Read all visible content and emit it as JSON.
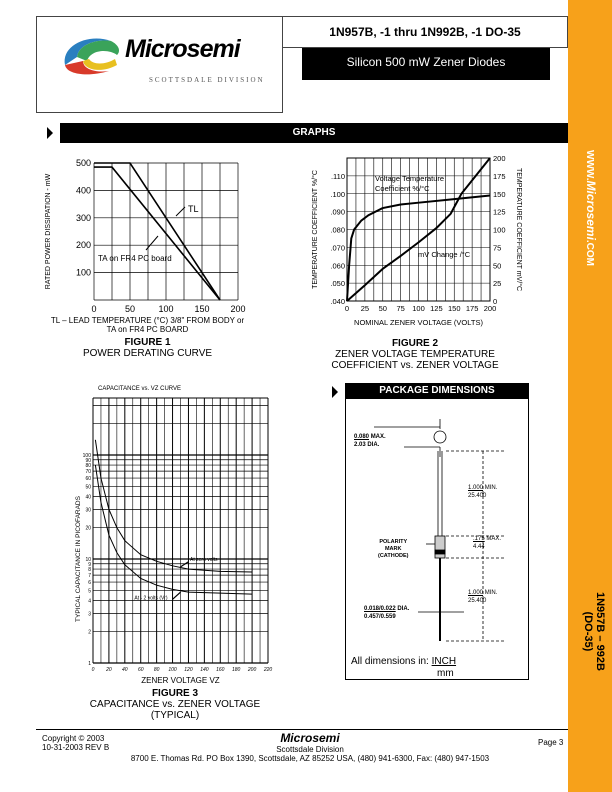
{
  "header": {
    "logo_text": "Microsemi",
    "logo_division": "SCOTTSDALE DIVISION",
    "title": "1N957B, -1 thru 1N992B, -1  DO-35",
    "subtitle": "Silicon 500 mW Zener Diodes"
  },
  "sidebar": {
    "website_prefix": "WWW.",
    "website_brand": "Microsemi",
    "website_suffix": ".COM",
    "part_line1": "1N957B – 992B",
    "part_line2": "(DO-35)",
    "color": "#f7a11a"
  },
  "sections": {
    "graphs": "GRAPHS",
    "package": "PACKAGE DIMENSIONS"
  },
  "figure1": {
    "fig_label": "FIGURE 1",
    "caption": "POWER DERATING CURVE",
    "xlabel_line1": "TL – LEAD TEMPERATURE (°C) 3/8\" FROM BODY or",
    "xlabel_line2": "TA on FR4 PC BOARD",
    "ylabel": "RATED POWER DISSIPATION - mW",
    "annot_tl": "TL",
    "annot_ta": "TA on FR4 PC board"
  },
  "figure2": {
    "fig_label": "FIGURE 2",
    "caption_line1": "ZENER VOLTAGE TEMPERATURE",
    "caption_line2": "COEFFICIENT vs. ZENER VOLTAGE",
    "xlabel": "NOMINAL ZENER VOLTAGE (VOLTS)",
    "ylabel_left": "TEMPERATURE COEFFICIENT %/°C",
    "ylabel_right": "TEMPERATURE COEFFICIENT mV/°C",
    "annot_pct_line1": "Voltage Temperature",
    "annot_pct_line2": "Coefficient %/°C",
    "annot_mv": "mV Change /°C"
  },
  "figure3": {
    "title": "CAPACITANCE vs. VZ CURVE",
    "fig_label": "FIGURE 3",
    "caption_line1": "CAPACITANCE vs. ZENER VOLTAGE",
    "caption_line2": "(TYPICAL)",
    "xlabel": "ZENER VOLTAGE VZ",
    "ylabel": "TYPICAL CAPACITANCE IN PICOFARADS",
    "annot_zero": "At zero volts",
    "annot_minus2": "At - 2 volts (Vr)"
  },
  "package": {
    "lead_dia": {
      "inch": "0.080",
      "mm": "2.03",
      "note1": "MAX.",
      "note2": "DIA."
    },
    "lead_len_top": {
      "inch": "1.000",
      "mm": "25.400",
      "note": "MIN."
    },
    "body_len": {
      "inch": ".175",
      "mm": "4.44",
      "note": "MAX."
    },
    "polarity": [
      "POLARITY",
      "MARK",
      "(CATHODE)"
    ],
    "lead_len_bottom": {
      "inch": "1.000",
      "mm": "25.400",
      "note": "MIN."
    },
    "wire_dia": {
      "inch": "0.018/0.022",
      "mm": "0.457/0.559",
      "note": "DIA."
    },
    "units_label": "All dimensions in:",
    "units_inch": "INCH",
    "units_mm": "mm"
  },
  "footer": {
    "copyright": "Copyright © 2003",
    "rev": "10-31-2003  REV B",
    "brand": "Microsemi",
    "division": "Scottsdale Division",
    "address": "8700 E. Thomas Rd. PO Box 1390, Scottsdale, AZ 85252 USA, (480) 941-6300, Fax: (480) 947-1503",
    "page": "Page 3"
  },
  "chart_data": [
    {
      "type": "line",
      "title": "",
      "xlabel": "TL – LEAD TEMPERATURE (°C) 3/8\" FROM BODY or TA on FR4 PC BOARD",
      "ylabel": "RATED POWER DISSIPATION - mW",
      "xlim": [
        0,
        200
      ],
      "ylim": [
        0,
        500
      ],
      "xticks": [
        0,
        50,
        100,
        150,
        200
      ],
      "yticks": [
        100,
        200,
        300,
        400,
        500
      ],
      "grid": true,
      "series": [
        {
          "name": "TL",
          "points": [
            [
              0,
              500
            ],
            [
              50,
              500
            ],
            [
              175,
              0
            ]
          ]
        },
        {
          "name": "TA on FR4 PC board",
          "points": [
            [
              0,
              485
            ],
            [
              25,
              485
            ],
            [
              175,
              0
            ]
          ]
        }
      ]
    },
    {
      "type": "line",
      "xlabel": "NOMINAL ZENER VOLTAGE (VOLTS)",
      "xlim": [
        0,
        200
      ],
      "ylim_left": [
        0.04,
        0.12
      ],
      "ylim_right": [
        0,
        200
      ],
      "xticks": [
        0,
        25,
        50,
        75,
        100,
        125,
        150,
        175,
        200
      ],
      "yticks_left": [
        ".040",
        ".050",
        ".060",
        ".070",
        ".080",
        ".090",
        ".100",
        ".110"
      ],
      "yticks_right": [
        0,
        25,
        50,
        75,
        100,
        125,
        150,
        175,
        200
      ],
      "grid": true,
      "series": [
        {
          "name": "Voltage Temperature Coefficient %/°C",
          "axis": "left",
          "points": [
            [
              0,
              0.04
            ],
            [
              3,
              0.06
            ],
            [
              6,
              0.075
            ],
            [
              10,
              0.08
            ],
            [
              20,
              0.085
            ],
            [
              30,
              0.088
            ],
            [
              50,
              0.092
            ],
            [
              75,
              0.094
            ],
            [
              100,
              0.095
            ],
            [
              150,
              0.097
            ],
            [
              200,
              0.099
            ]
          ]
        },
        {
          "name": "mV Change /°C",
          "axis": "right",
          "points": [
            [
              0,
              0
            ],
            [
              25,
              22
            ],
            [
              50,
              45
            ],
            [
              75,
              63
            ],
            [
              100,
              82
            ],
            [
              125,
              102
            ],
            [
              145,
              122
            ],
            [
              160,
              150
            ],
            [
              200,
              200
            ]
          ]
        }
      ]
    },
    {
      "type": "line",
      "title": "CAPACITANCE vs. VZ CURVE",
      "xlabel": "ZENER VOLTAGE VZ",
      "ylabel": "TYPICAL CAPACITANCE IN PICOFARADS",
      "yscale": "log",
      "xlim": [
        0,
        220
      ],
      "ylim": [
        1,
        350
      ],
      "xticks": [
        0,
        20,
        40,
        60,
        80,
        100,
        120,
        140,
        160,
        180,
        200,
        220
      ],
      "yticks": [
        1,
        2,
        3,
        4,
        5,
        6,
        7,
        8,
        9,
        10,
        20,
        30,
        40,
        50,
        60,
        70,
        80,
        90,
        100
      ],
      "grid": true,
      "series": [
        {
          "name": "At zero volts",
          "points": [
            [
              3,
              140
            ],
            [
              10,
              60
            ],
            [
              20,
              30
            ],
            [
              30,
              20
            ],
            [
              40,
              15
            ],
            [
              60,
              11
            ],
            [
              80,
              9.5
            ],
            [
              100,
              8.6
            ],
            [
              120,
              8
            ],
            [
              160,
              7.6
            ],
            [
              200,
              7.5
            ]
          ]
        },
        {
          "name": "At - 2 volts (Vr)",
          "points": [
            [
              3,
              80
            ],
            [
              10,
              35
            ],
            [
              20,
              17
            ],
            [
              30,
              11.5
            ],
            [
              40,
              8.8
            ],
            [
              60,
              6.5
            ],
            [
              80,
              5.6
            ],
            [
              100,
              5.1
            ],
            [
              120,
              4.8
            ],
            [
              160,
              4.7
            ],
            [
              200,
              4.6
            ]
          ]
        }
      ]
    }
  ]
}
